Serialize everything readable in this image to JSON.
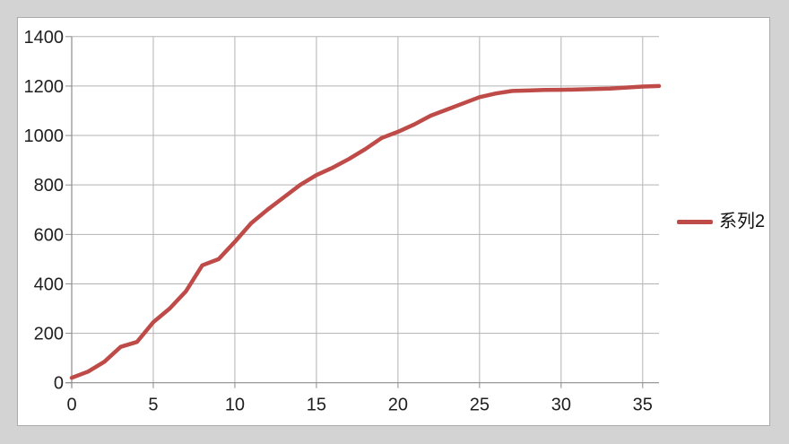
{
  "window": {
    "background_color": "#d3d3d3",
    "frame_fill": "#ffffff",
    "frame_border_color": "#ababab"
  },
  "axis_style": {
    "gridline_color": "#b3b3b3",
    "axis_line_color": "#8c8c8c",
    "tick_label_color": "#1f1f1f"
  },
  "legend": {
    "label": "系列2",
    "marker_color": "#be4b48",
    "position": "right"
  },
  "chart_data": {
    "type": "line",
    "title": "",
    "xlabel": "",
    "ylabel": "",
    "grid": true,
    "legend_position": "right",
    "xlim": [
      0,
      36
    ],
    "ylim": [
      0,
      1400
    ],
    "x_ticks": [
      0,
      5,
      10,
      15,
      20,
      25,
      30,
      35
    ],
    "y_ticks": [
      0,
      200,
      400,
      600,
      800,
      1000,
      1200,
      1400
    ],
    "series": [
      {
        "name": "系列2",
        "color": "#be4b48",
        "x": [
          0,
          1,
          2,
          3,
          4,
          5,
          6,
          7,
          8,
          9,
          10,
          11,
          12,
          13,
          14,
          15,
          16,
          17,
          18,
          19,
          20,
          21,
          22,
          23,
          24,
          25,
          26,
          27,
          28,
          29,
          30,
          31,
          32,
          33,
          34,
          35,
          36
        ],
        "values": [
          20,
          45,
          85,
          145,
          165,
          245,
          300,
          370,
          475,
          500,
          570,
          645,
          700,
          750,
          800,
          840,
          870,
          905,
          945,
          990,
          1015,
          1045,
          1080,
          1105,
          1130,
          1155,
          1170,
          1180,
          1182,
          1184,
          1185,
          1186,
          1188,
          1190,
          1194,
          1198,
          1200
        ]
      }
    ]
  }
}
